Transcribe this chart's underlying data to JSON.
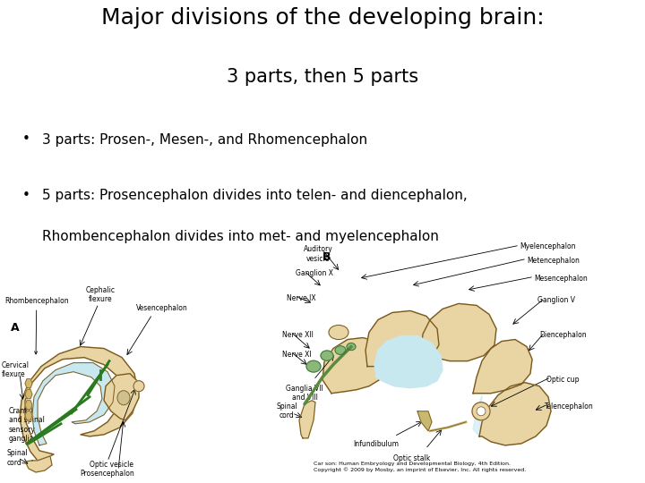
{
  "title_line1": "Major divisions of the developing brain:",
  "title_line2": "3 parts, then 5 parts",
  "bullet1": "3 parts: Prosen-, Mesen-, and Rhomencephalon",
  "bullet2_line1": "5 parts: Prosencephalon divides into telen- and diencephalon,",
  "bullet2_line2": "Rhombencephalon divides into met- and myelencephalon",
  "background_color": "#ffffff",
  "title_fontsize": 18,
  "subtitle_fontsize": 15,
  "bullet_fontsize": 11,
  "title_color": "#000000",
  "bullet_color": "#000000",
  "tan_color": "#e8d5a3",
  "tan_dark": "#c8a85a",
  "outline_color": "#7a5a20",
  "fluid_color": "#c8e8f0",
  "green_color": "#2a7a20",
  "label_fontsize": 5.5,
  "citation": "Car son: Human Embryology and Developmental Biology, 4th Edition.\nCopyright © 2009 by Mosby, an imprint of Elsevier, Inc. All rights reserved."
}
